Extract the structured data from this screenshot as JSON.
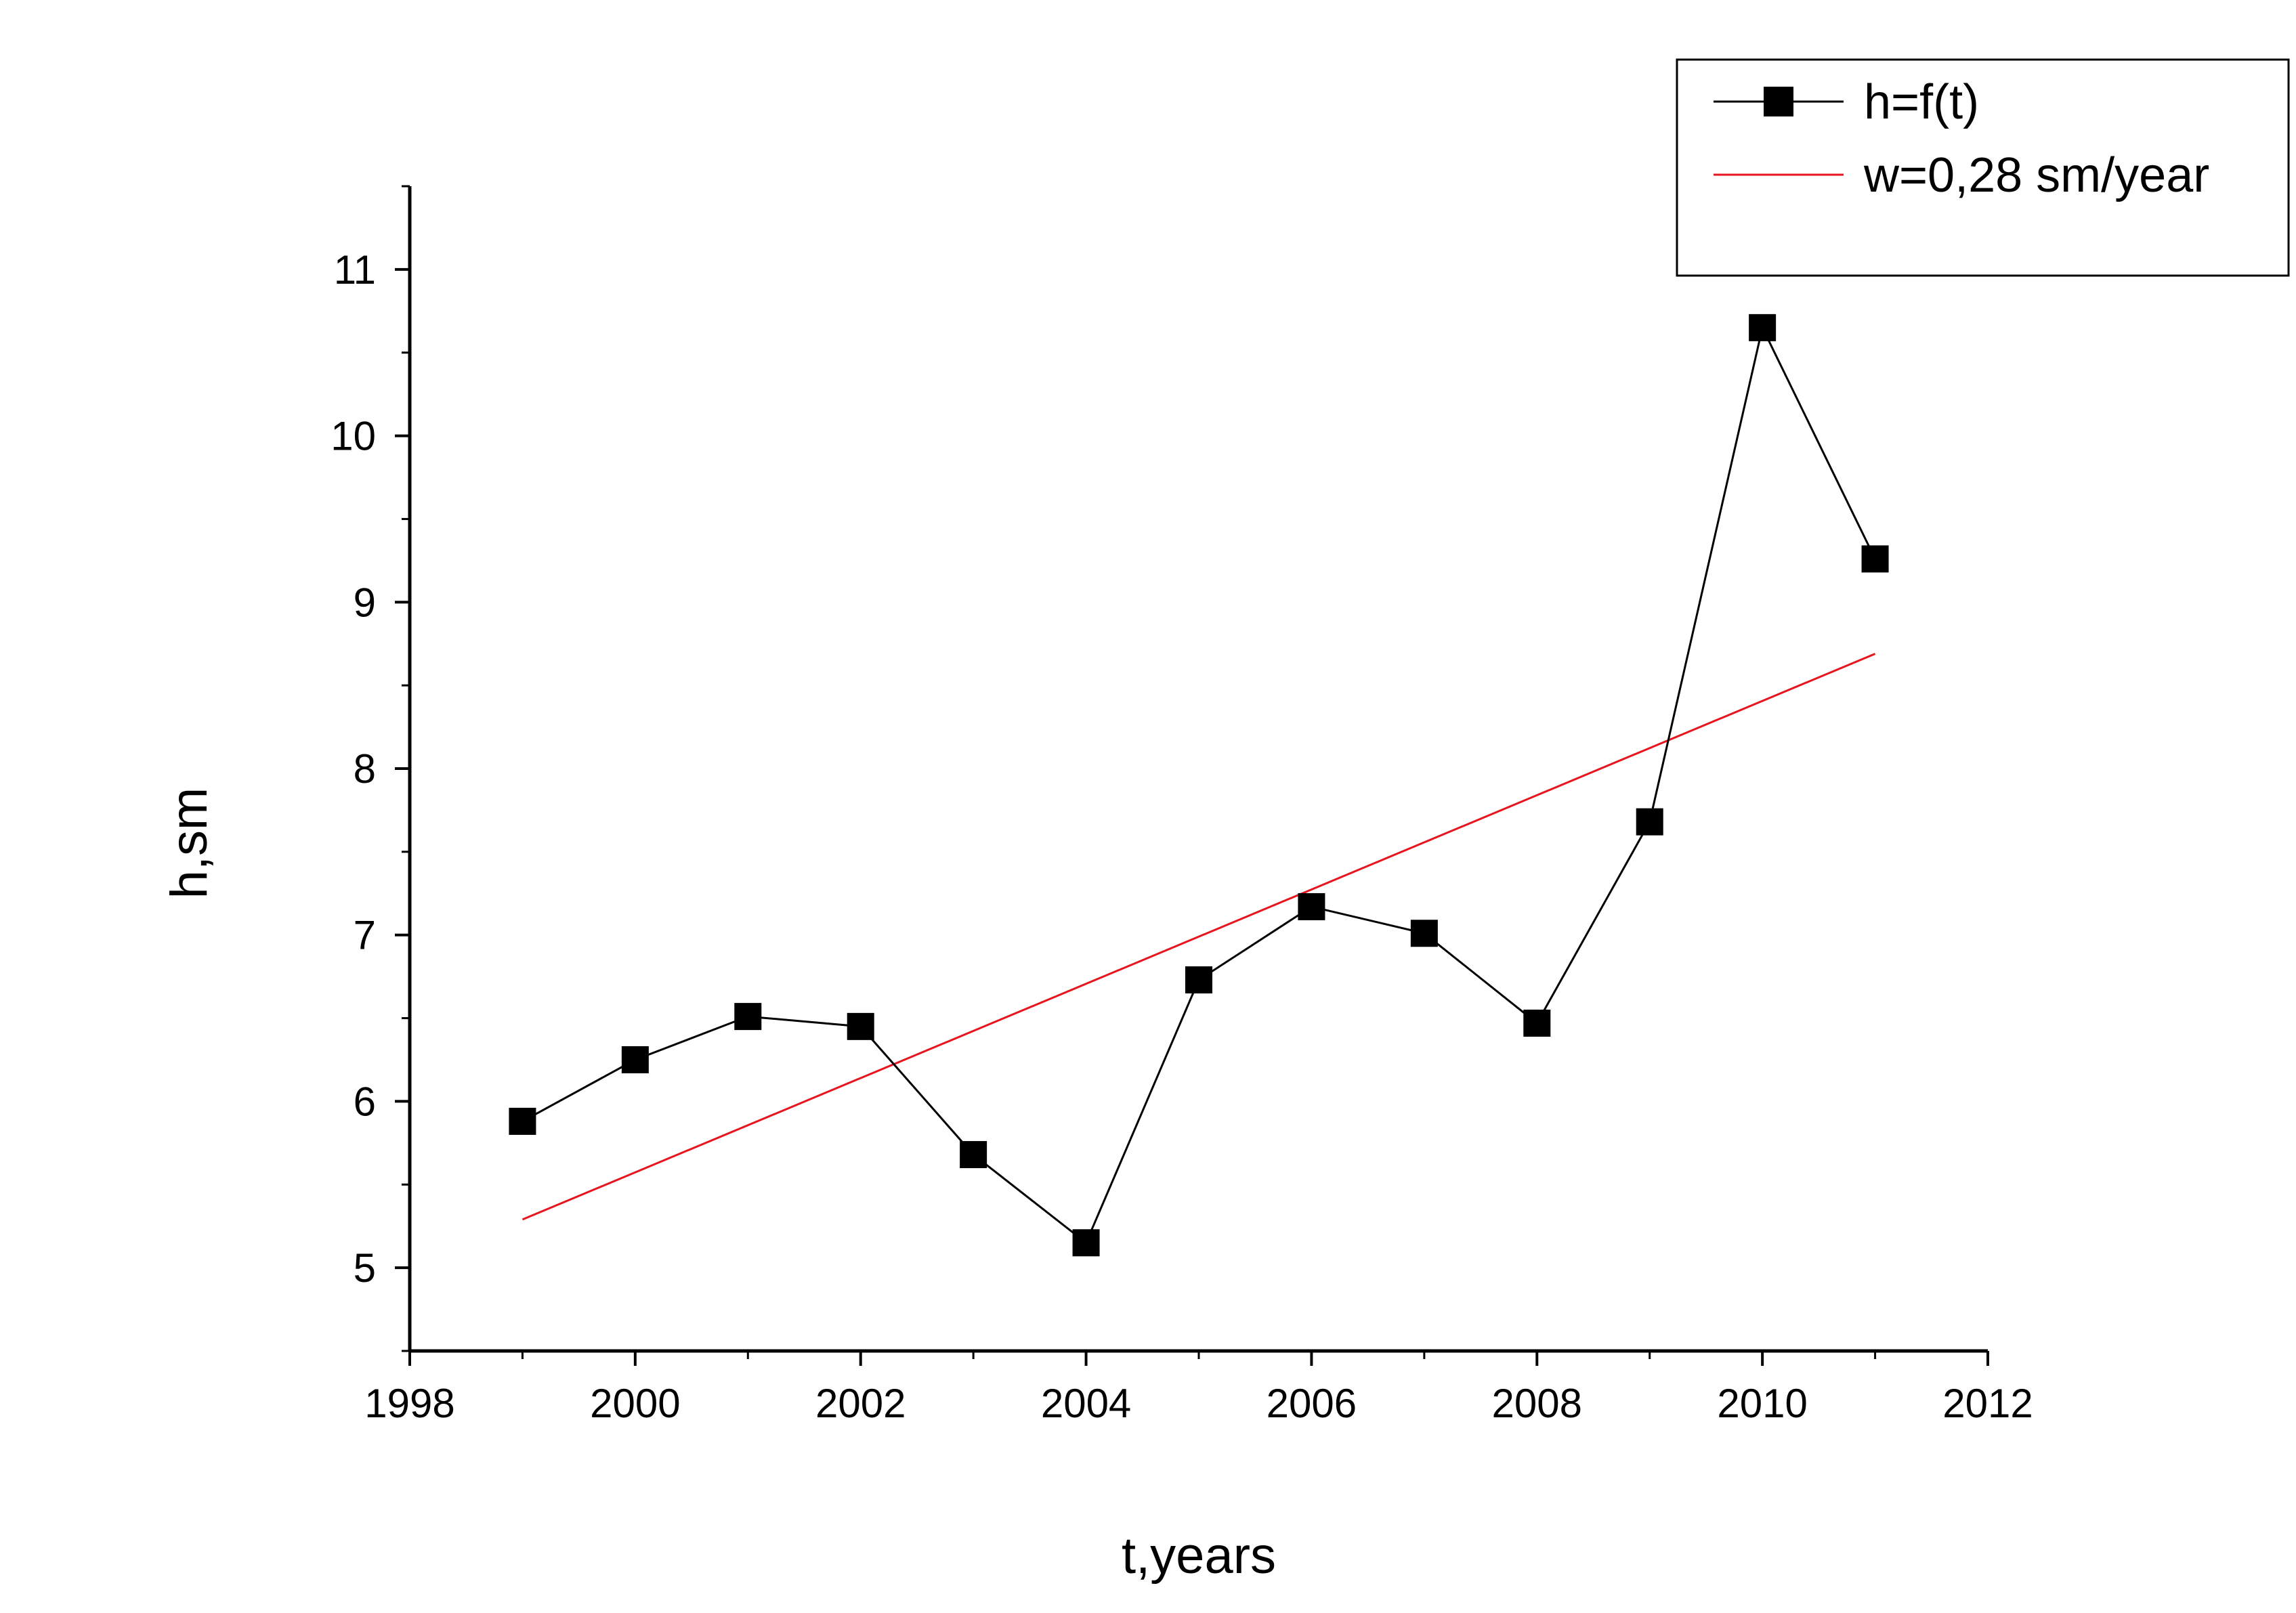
{
  "chart_data": {
    "type": "line",
    "title": "",
    "xlabel": "t,years",
    "ylabel": "h,sm",
    "xlim": [
      1998,
      2012
    ],
    "ylim": [
      4.5,
      11.5
    ],
    "x_ticks": [
      1998,
      2000,
      2002,
      2004,
      2006,
      2008,
      2010,
      2012
    ],
    "y_ticks": [
      5,
      6,
      7,
      8,
      9,
      10,
      11
    ],
    "grid": false,
    "legend_position": "top-right",
    "series": [
      {
        "name": "h=f(t)",
        "style": "line-with-square-markers",
        "color": "#000000",
        "x": [
          1999,
          2000,
          2001,
          2002,
          2003,
          2004,
          2005,
          2006,
          2007,
          2008,
          2009,
          2010,
          2011
        ],
        "values": [
          5.88,
          6.25,
          6.51,
          6.45,
          5.68,
          5.15,
          6.73,
          7.17,
          7.01,
          6.47,
          7.68,
          10.65,
          9.26
        ]
      },
      {
        "name": "w=0,28 sm/year",
        "style": "line",
        "color": "#e8141e",
        "x": [
          1999,
          2011
        ],
        "values": [
          5.29,
          8.69
        ]
      }
    ]
  }
}
